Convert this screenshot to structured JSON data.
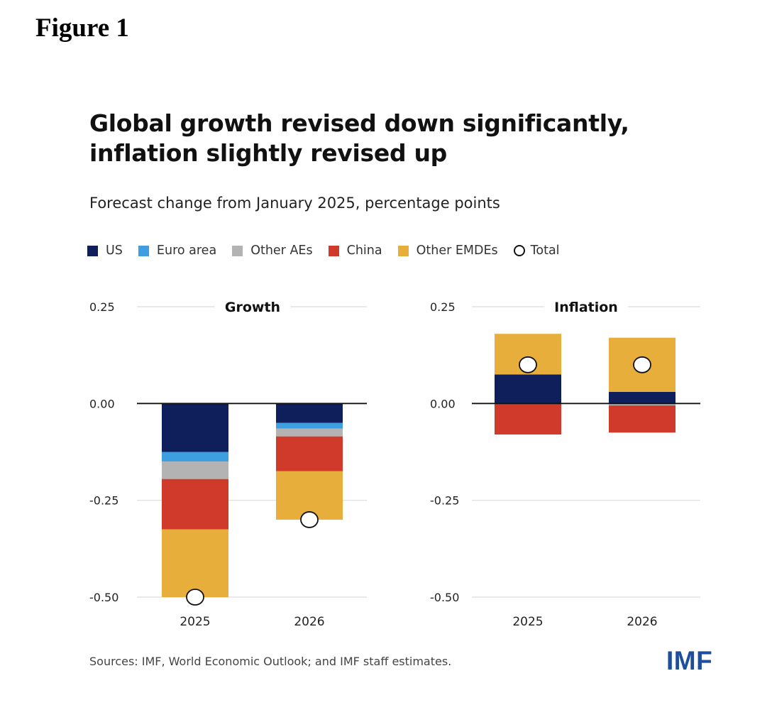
{
  "figure_label": "Figure 1",
  "source": "Sources: IMF, World Economic Outlook; and IMF staff estimates.",
  "logo": "IMF",
  "legend": [
    {
      "name": "US",
      "color": "#0e1f5b"
    },
    {
      "name": "Euro area",
      "color": "#3d9ee0"
    },
    {
      "name": "Other AEs",
      "color": "#b3b3b3"
    },
    {
      "name": "China",
      "color": "#cf3a2a"
    },
    {
      "name": "Other EMDEs",
      "color": "#e7ae3b"
    },
    {
      "name": "Total",
      "color": "#ffffff",
      "marker": "circle"
    }
  ],
  "chart_data": {
    "type": "bar",
    "stacked": true,
    "title": "Global growth revised down significantly, inflation slightly revised up",
    "subtitle": "Forecast change from January 2025, percentage points",
    "ylim": [
      -0.5,
      0.25
    ],
    "yticks": [
      0.25,
      0.0,
      -0.25,
      -0.5
    ],
    "ytick_labels": [
      "0.25",
      "0.00",
      "-0.25",
      "-0.50"
    ],
    "panels": [
      {
        "title": "Growth",
        "categories": [
          "2025",
          "2026"
        ],
        "series": [
          {
            "name": "US",
            "values": [
              -0.125,
              -0.05
            ]
          },
          {
            "name": "Euro area",
            "values": [
              -0.025,
              -0.015
            ]
          },
          {
            "name": "Other AEs",
            "values": [
              -0.045,
              -0.02
            ]
          },
          {
            "name": "China",
            "values": [
              -0.13,
              -0.09
            ]
          },
          {
            "name": "Other EMDEs",
            "values": [
              -0.175,
              -0.125
            ]
          }
        ],
        "total": [
          -0.5,
          -0.3
        ]
      },
      {
        "title": "Inflation",
        "categories": [
          "2025",
          "2026"
        ],
        "series": [
          {
            "name": "US",
            "values": [
              0.075,
              0.03
            ]
          },
          {
            "name": "Euro area",
            "values": [
              0.0,
              0.0
            ]
          },
          {
            "name": "Other AEs",
            "values": [
              0.0,
              -0.005
            ]
          },
          {
            "name": "China",
            "values": [
              -0.08,
              -0.07
            ]
          },
          {
            "name": "Other EMDEs",
            "values": [
              0.105,
              0.14
            ]
          }
        ],
        "total": [
          0.1,
          0.1
        ]
      }
    ]
  }
}
